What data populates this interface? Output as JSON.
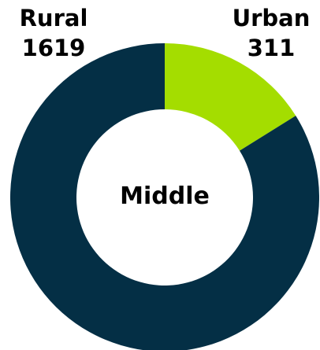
{
  "chart_data": {
    "type": "pie",
    "donut": true,
    "center_label": "Middle",
    "slices": [
      {
        "name": "Urban",
        "value": 311,
        "color": "#a4dd00"
      },
      {
        "name": "Rural",
        "value": 1619,
        "color": "#042f45"
      }
    ],
    "labels": {
      "rural_name": "Rural",
      "rural_value": "1619",
      "urban_name": "Urban",
      "urban_value": "311"
    }
  }
}
